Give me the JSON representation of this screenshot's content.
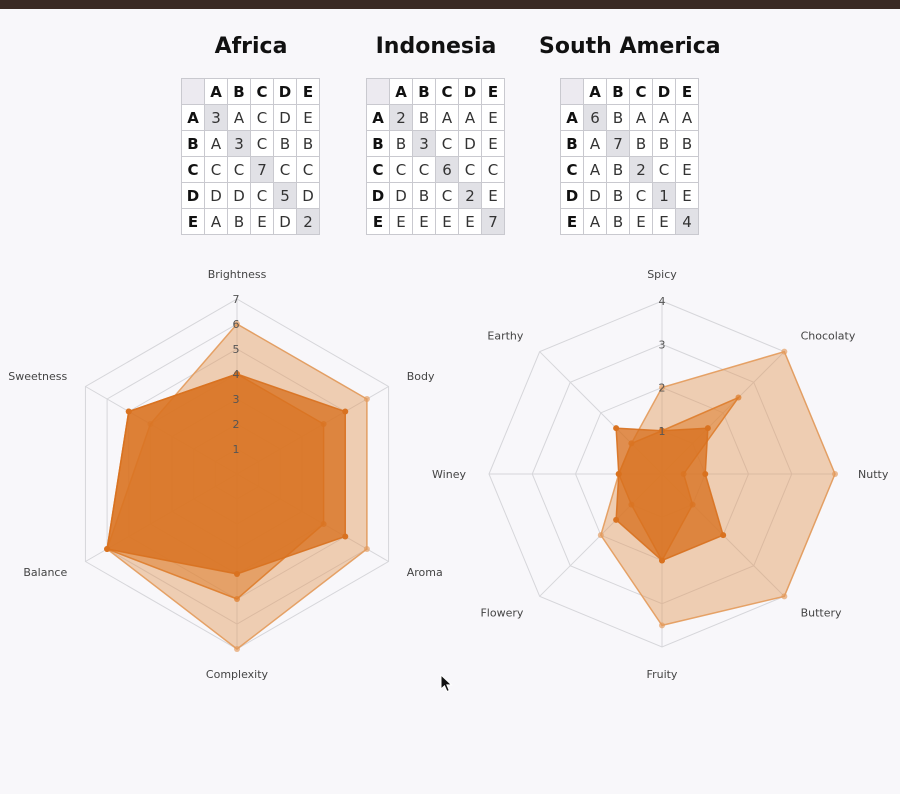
{
  "colors": {
    "accent": "#d9731f",
    "series_fill": [
      "#d8711f",
      "#de7d2c",
      "#e39a5a"
    ],
    "grid": "#d6d6da"
  },
  "tables": [
    {
      "title": "Africa",
      "headers": [
        "A",
        "B",
        "C",
        "D",
        "E"
      ],
      "rows": [
        {
          "label": "A",
          "cells": [
            "3",
            "A",
            "C",
            "D",
            "E"
          ]
        },
        {
          "label": "B",
          "cells": [
            "A",
            "3",
            "C",
            "B",
            "B"
          ]
        },
        {
          "label": "C",
          "cells": [
            "C",
            "C",
            "7",
            "C",
            "C"
          ]
        },
        {
          "label": "D",
          "cells": [
            "D",
            "D",
            "C",
            "5",
            "D"
          ]
        },
        {
          "label": "E",
          "cells": [
            "A",
            "B",
            "E",
            "D",
            "2"
          ]
        }
      ]
    },
    {
      "title": "Indonesia",
      "headers": [
        "A",
        "B",
        "C",
        "D",
        "E"
      ],
      "rows": [
        {
          "label": "A",
          "cells": [
            "2",
            "B",
            "A",
            "A",
            "E"
          ]
        },
        {
          "label": "B",
          "cells": [
            "B",
            "3",
            "C",
            "D",
            "E"
          ]
        },
        {
          "label": "C",
          "cells": [
            "C",
            "C",
            "6",
            "C",
            "C"
          ]
        },
        {
          "label": "D",
          "cells": [
            "D",
            "B",
            "C",
            "2",
            "E"
          ]
        },
        {
          "label": "E",
          "cells": [
            "E",
            "E",
            "E",
            "E",
            "7"
          ]
        }
      ]
    },
    {
      "title": "South America",
      "headers": [
        "A",
        "B",
        "C",
        "D",
        "E"
      ],
      "rows": [
        {
          "label": "A",
          "cells": [
            "6",
            "B",
            "A",
            "A",
            "A"
          ]
        },
        {
          "label": "B",
          "cells": [
            "A",
            "7",
            "B",
            "B",
            "B"
          ]
        },
        {
          "label": "C",
          "cells": [
            "A",
            "B",
            "2",
            "C",
            "E"
          ]
        },
        {
          "label": "D",
          "cells": [
            "D",
            "B",
            "C",
            "1",
            "E"
          ]
        },
        {
          "label": "E",
          "cells": [
            "A",
            "B",
            "E",
            "E",
            "4"
          ]
        }
      ]
    }
  ],
  "chart_data": [
    {
      "type": "radar",
      "axes": [
        "Brightness",
        "Body",
        "Aroma",
        "Complexity",
        "Balance",
        "Sweetness"
      ],
      "ticks": [
        "1",
        "2",
        "3",
        "4",
        "5",
        "6",
        "7"
      ],
      "rmax": 7,
      "series": [
        {
          "values": [
            4,
            5,
            5,
            4,
            6,
            5
          ]
        },
        {
          "values": [
            4,
            4,
            4,
            5,
            6,
            5
          ]
        },
        {
          "values": [
            6,
            6,
            6,
            7,
            6,
            4
          ]
        }
      ]
    },
    {
      "type": "radar",
      "axes": [
        "Spicy",
        "Chocolaty",
        "Nutty",
        "Buttery",
        "Fruity",
        "Flowery",
        "Winey",
        "Earthy"
      ],
      "ticks": [
        "1",
        "2",
        "3",
        "4"
      ],
      "rmax": 4,
      "series": [
        {
          "values": [
            1,
            1.5,
            1,
            2,
            2,
            1.5,
            1,
            1.5
          ]
        },
        {
          "values": [
            1,
            2.5,
            0.5,
            1,
            2,
            1,
            1,
            1
          ]
        },
        {
          "values": [
            2,
            4,
            4,
            4,
            3.5,
            2,
            1,
            1
          ]
        }
      ]
    }
  ]
}
